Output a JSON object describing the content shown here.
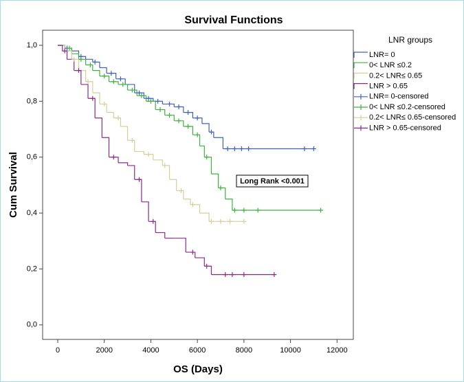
{
  "chart_data": {
    "type": "km",
    "title": "Survival Functions",
    "x_label": "OS (Days)",
    "y_label": "Cum Survival",
    "legend_title": "LNR groups",
    "annotation": "Long Rank <0.001",
    "xlim": [
      -650,
      12700
    ],
    "ylim": [
      -0.052,
      1.054
    ],
    "xticks": [
      0,
      2000,
      4000,
      6000,
      8000,
      10000,
      12000
    ],
    "yticks": [
      {
        "value": 0,
        "label": "0,0"
      },
      {
        "value": 0.2,
        "label": "0,2"
      },
      {
        "value": 0.4,
        "label": "0,4"
      },
      {
        "value": 0.6,
        "label": "0,6"
      },
      {
        "value": 0.8,
        "label": "0,8"
      },
      {
        "value": 1.0,
        "label": "1,0"
      }
    ],
    "series": [
      {
        "name": "LNR= 0",
        "color": "#4060c0",
        "kind": "step",
        "x": [
          0,
          300,
          600,
          900,
          1200,
          1500,
          1800,
          2100,
          2500,
          2900,
          3300,
          3700,
          4100,
          4500,
          5000,
          5400,
          5800,
          6200,
          6500,
          6700,
          7100,
          11000
        ],
        "values": [
          1.0,
          0.99,
          0.98,
          0.96,
          0.95,
          0.94,
          0.92,
          0.9,
          0.88,
          0.86,
          0.83,
          0.81,
          0.8,
          0.79,
          0.78,
          0.76,
          0.74,
          0.72,
          0.69,
          0.67,
          0.63,
          0.63
        ]
      },
      {
        "name": "0< LNR ≤0.2",
        "color": "#3cb43c",
        "kind": "step",
        "x": [
          0,
          300,
          600,
          900,
          1200,
          1500,
          1800,
          2200,
          2600,
          3000,
          3400,
          3800,
          4200,
          4600,
          5000,
          5400,
          5800,
          6100,
          6300,
          6600,
          6900,
          7200,
          7500,
          11300
        ],
        "values": [
          1.0,
          0.99,
          0.97,
          0.95,
          0.93,
          0.91,
          0.89,
          0.87,
          0.86,
          0.84,
          0.82,
          0.8,
          0.77,
          0.75,
          0.73,
          0.71,
          0.68,
          0.64,
          0.6,
          0.54,
          0.49,
          0.45,
          0.41,
          0.41
        ]
      },
      {
        "name": "0.2< LNR≤ 0.65",
        "color": "#d4d09a",
        "kind": "step",
        "x": [
          0,
          300,
          600,
          900,
          1200,
          1500,
          1800,
          2100,
          2400,
          2700,
          3000,
          3300,
          3700,
          4100,
          4500,
          4800,
          5100,
          5400,
          5700,
          6100,
          6500,
          8000
        ],
        "values": [
          1.0,
          0.98,
          0.95,
          0.91,
          0.87,
          0.83,
          0.79,
          0.76,
          0.74,
          0.71,
          0.66,
          0.62,
          0.61,
          0.59,
          0.57,
          0.52,
          0.48,
          0.45,
          0.43,
          0.4,
          0.37,
          0.37
        ]
      },
      {
        "name": "LNR > 0.65",
        "color": "#8c2a8c",
        "kind": "step",
        "x": [
          0,
          200,
          400,
          700,
          1000,
          1300,
          1600,
          1900,
          2200,
          2600,
          3000,
          3300,
          3600,
          3900,
          4200,
          4600,
          5000,
          5500,
          5900,
          6300,
          6600,
          9300
        ],
        "values": [
          1.0,
          0.98,
          0.95,
          0.91,
          0.86,
          0.81,
          0.74,
          0.67,
          0.6,
          0.58,
          0.57,
          0.52,
          0.44,
          0.37,
          0.33,
          0.31,
          0.31,
          0.26,
          0.24,
          0.21,
          0.18,
          0.18
        ]
      },
      {
        "name": "LNR= 0-censored",
        "color": "#4060c0",
        "kind": "censor",
        "x": [
          400,
          1000,
          1600,
          2300,
          2700,
          3500,
          3900,
          4300,
          4800,
          5200,
          5600,
          6000,
          6600,
          7300,
          7600,
          7900,
          8200,
          10600,
          11000
        ],
        "values": [
          0.99,
          0.96,
          0.94,
          0.9,
          0.88,
          0.83,
          0.81,
          0.8,
          0.79,
          0.78,
          0.76,
          0.74,
          0.69,
          0.63,
          0.63,
          0.63,
          0.63,
          0.63,
          0.63
        ]
      },
      {
        "name": "0< LNR ≤0.2-censored",
        "color": "#3cb43c",
        "kind": "censor",
        "x": [
          500,
          1000,
          1400,
          2000,
          2400,
          2800,
          3200,
          3600,
          4000,
          4400,
          4800,
          5200,
          5600,
          6000,
          6400,
          7000,
          7600,
          8000,
          8600,
          11300
        ],
        "values": [
          0.99,
          0.95,
          0.93,
          0.89,
          0.87,
          0.86,
          0.84,
          0.82,
          0.8,
          0.77,
          0.75,
          0.73,
          0.71,
          0.68,
          0.6,
          0.49,
          0.41,
          0.41,
          0.41,
          0.41
        ]
      },
      {
        "name": "0.2< LNR≤ 0.65-censored",
        "color": "#d4d09a",
        "kind": "censor",
        "x": [
          700,
          1300,
          2000,
          2600,
          3200,
          3900,
          4600,
          5300,
          5800,
          6600,
          7000,
          7400,
          8000
        ],
        "values": [
          0.95,
          0.87,
          0.79,
          0.74,
          0.66,
          0.61,
          0.57,
          0.48,
          0.43,
          0.37,
          0.37,
          0.37,
          0.37
        ]
      },
      {
        "name": "LNR > 0.65-censored",
        "color": "#8c2a8c",
        "kind": "censor",
        "x": [
          300,
          900,
          1500,
          2400,
          3500,
          4100,
          5800,
          6400,
          7200,
          7500,
          8000,
          9300
        ],
        "values": [
          0.98,
          0.91,
          0.81,
          0.6,
          0.52,
          0.37,
          0.26,
          0.21,
          0.18,
          0.18,
          0.18,
          0.18
        ]
      }
    ]
  }
}
